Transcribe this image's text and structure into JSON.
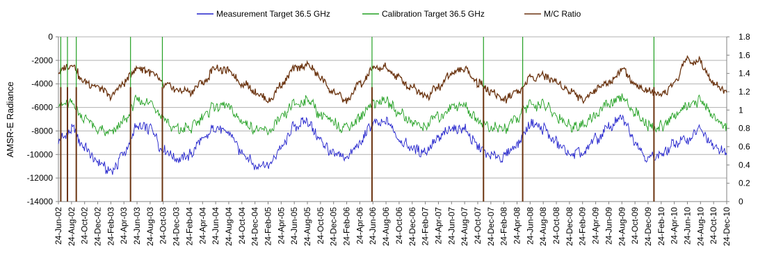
{
  "chart_data": {
    "type": "line",
    "title": "",
    "ylabel": "AMSR-E Radiance",
    "y2label": "",
    "xlabel": "",
    "ylim": [
      -14000,
      0
    ],
    "y2lim": [
      0,
      1.8
    ],
    "y_ticks": [
      0,
      -2000,
      -4000,
      -6000,
      -8000,
      -10000,
      -12000,
      -14000
    ],
    "y_tick_labels": [
      "0",
      "-2000",
      "-4000",
      "-6000",
      "-8000",
      "-10000",
      "-12000",
      "-14000"
    ],
    "y2_ticks": [
      0,
      0.2,
      0.4,
      0.6,
      0.8,
      1,
      1.2,
      1.4,
      1.6,
      1.8
    ],
    "y2_tick_labels": [
      "0",
      "0.2",
      "0.4",
      "0.6",
      "0.8",
      "1",
      "1.2",
      "1.4",
      "1.6",
      "1.8"
    ],
    "grid": true,
    "legend_position": "top",
    "x_tick_labels": [
      "24-Jun-02",
      "24-Aug-02",
      "24-Oct-02",
      "24-Dec-02",
      "24-Feb-03",
      "24-Apr-03",
      "24-Jun-03",
      "24-Aug-03",
      "24-Oct-03",
      "24-Dec-03",
      "24-Feb-04",
      "24-Apr-04",
      "24-Jun-04",
      "24-Aug-04",
      "24-Oct-04",
      "24-Dec-04",
      "24-Feb-05",
      "24-Apr-05",
      "24-Jun-05",
      "24-Aug-05",
      "24-Oct-05",
      "24-Dec-05",
      "24-Feb-06",
      "24-Apr-06",
      "24-Jun-06",
      "24-Aug-06",
      "24-Oct-06",
      "24-Dec-06",
      "24-Feb-07",
      "24-Apr-07",
      "24-Jun-07",
      "24-Aug-07",
      "24-Oct-07",
      "24-Dec-07",
      "24-Feb-08",
      "24-Apr-08",
      "24-Jun-08",
      "24-Aug-08",
      "24-Oct-08",
      "24-Dec-08",
      "24-Feb-09",
      "24-Apr-09",
      "24-Jun-09",
      "24-Aug-09",
      "24-Oct-09",
      "24-Dec-09",
      "24-Feb-10",
      "24-Apr-10",
      "24-Jun-10",
      "24-Aug-10",
      "24-Oct-10",
      "24-Dec-10"
    ],
    "x_start": "2002-06-24",
    "x_end": "2010-12-24",
    "series": [
      {
        "name": "Measurement Target 36.5 GHz",
        "axis": "left",
        "color": "#2222cc",
        "x": [
          "2002-06-24",
          "2002-08-24",
          "2002-10-24",
          "2002-12-24",
          "2003-02-24",
          "2003-04-24",
          "2003-06-24",
          "2003-08-24",
          "2003-10-24",
          "2003-12-24",
          "2004-02-24",
          "2004-04-24",
          "2004-06-24",
          "2004-08-24",
          "2004-10-24",
          "2004-12-24",
          "2005-02-24",
          "2005-04-24",
          "2005-06-24",
          "2005-08-24",
          "2005-10-24",
          "2005-12-24",
          "2006-02-24",
          "2006-04-24",
          "2006-06-24",
          "2006-08-24",
          "2006-10-24",
          "2006-12-24",
          "2007-02-24",
          "2007-04-24",
          "2007-06-24",
          "2007-08-24",
          "2007-10-24",
          "2007-12-24",
          "2008-02-24",
          "2008-04-24",
          "2008-06-24",
          "2008-08-24",
          "2008-10-24",
          "2008-12-24",
          "2009-02-24",
          "2009-04-24",
          "2009-06-24",
          "2009-08-24",
          "2009-10-24",
          "2009-12-24",
          "2010-02-24",
          "2010-04-24",
          "2010-06-24",
          "2010-08-24",
          "2010-10-24",
          "2010-12-24"
        ],
        "values": [
          -8800,
          -7800,
          -9300,
          -10800,
          -11500,
          -10000,
          -7600,
          -7800,
          -9600,
          -10500,
          -10000,
          -8800,
          -7700,
          -8000,
          -9800,
          -10900,
          -11000,
          -9400,
          -7600,
          -7300,
          -8800,
          -10000,
          -10300,
          -9000,
          -7400,
          -7200,
          -8600,
          -9500,
          -9800,
          -8800,
          -7700,
          -7900,
          -9300,
          -10200,
          -10200,
          -9000,
          -7500,
          -7800,
          -9000,
          -10000,
          -9900,
          -8700,
          -7700,
          -7000,
          -8800,
          -10200,
          -10000,
          -9200,
          -8800,
          -7900,
          -9300,
          -10000
        ]
      },
      {
        "name": "Calibration Target 36.5 GHz",
        "axis": "left",
        "color": "#22a022",
        "x": [
          "2002-06-24",
          "2002-08-24",
          "2002-10-24",
          "2002-12-24",
          "2003-02-24",
          "2003-04-24",
          "2003-06-24",
          "2003-08-24",
          "2003-10-24",
          "2003-12-24",
          "2004-02-24",
          "2004-04-24",
          "2004-06-24",
          "2004-08-24",
          "2004-10-24",
          "2004-12-24",
          "2005-02-24",
          "2005-04-24",
          "2005-06-24",
          "2005-08-24",
          "2005-10-24",
          "2005-12-24",
          "2006-02-24",
          "2006-04-24",
          "2006-06-24",
          "2006-08-24",
          "2006-10-24",
          "2006-12-24",
          "2007-02-24",
          "2007-04-24",
          "2007-06-24",
          "2007-08-24",
          "2007-10-24",
          "2007-12-24",
          "2008-02-24",
          "2008-04-24",
          "2008-06-24",
          "2008-08-24",
          "2008-10-24",
          "2008-12-24",
          "2009-02-24",
          "2009-04-24",
          "2009-06-24",
          "2009-08-24",
          "2009-10-24",
          "2009-12-24",
          "2010-02-24",
          "2010-04-24",
          "2010-06-24",
          "2010-08-24",
          "2010-10-24",
          "2010-12-24"
        ],
        "values": [
          -5800,
          -5600,
          -7000,
          -7800,
          -8200,
          -7200,
          -5500,
          -5600,
          -7000,
          -7900,
          -7800,
          -6800,
          -5800,
          -6000,
          -7200,
          -7900,
          -8000,
          -7000,
          -5800,
          -5400,
          -6500,
          -7400,
          -7700,
          -6800,
          -5600,
          -5400,
          -6400,
          -7300,
          -7600,
          -6800,
          -5800,
          -5900,
          -7000,
          -7700,
          -7800,
          -6900,
          -5700,
          -5800,
          -6800,
          -7500,
          -7600,
          -6600,
          -5800,
          -5200,
          -6500,
          -7600,
          -7600,
          -6800,
          -6000,
          -5400,
          -6800,
          -7600
        ]
      },
      {
        "name": "M/C Ratio",
        "axis": "right",
        "color": "#6b3410",
        "x": [
          "2002-06-24",
          "2002-08-24",
          "2002-10-24",
          "2002-12-24",
          "2003-02-24",
          "2003-04-24",
          "2003-06-24",
          "2003-08-24",
          "2003-10-24",
          "2003-12-24",
          "2004-02-24",
          "2004-04-24",
          "2004-06-24",
          "2004-08-24",
          "2004-10-24",
          "2004-12-24",
          "2005-02-24",
          "2005-04-24",
          "2005-06-24",
          "2005-08-24",
          "2005-10-24",
          "2005-12-24",
          "2006-02-24",
          "2006-04-24",
          "2006-06-24",
          "2006-08-24",
          "2006-10-24",
          "2006-12-24",
          "2007-02-24",
          "2007-04-24",
          "2007-06-24",
          "2007-08-24",
          "2007-10-24",
          "2007-12-24",
          "2008-02-24",
          "2008-04-24",
          "2008-06-24",
          "2008-08-24",
          "2008-10-24",
          "2008-12-24",
          "2009-02-24",
          "2009-04-24",
          "2009-06-24",
          "2009-08-24",
          "2009-10-24",
          "2009-12-24",
          "2010-02-24",
          "2010-04-24",
          "2010-06-24",
          "2010-08-24",
          "2010-10-24",
          "2010-12-24"
        ],
        "values": [
          1.4,
          1.5,
          1.3,
          1.25,
          1.15,
          1.3,
          1.45,
          1.42,
          1.28,
          1.22,
          1.2,
          1.3,
          1.45,
          1.42,
          1.3,
          1.2,
          1.1,
          1.3,
          1.45,
          1.48,
          1.35,
          1.2,
          1.1,
          1.28,
          1.45,
          1.46,
          1.35,
          1.25,
          1.15,
          1.25,
          1.4,
          1.44,
          1.3,
          1.2,
          1.12,
          1.2,
          1.35,
          1.38,
          1.3,
          1.22,
          1.12,
          1.22,
          1.3,
          1.44,
          1.28,
          1.2,
          1.15,
          1.3,
          1.55,
          1.52,
          1.3,
          1.2
        ]
      }
    ],
    "spikes": [
      {
        "series": "M/C Ratio",
        "x": "2002-07-05",
        "value": 0
      },
      {
        "series": "M/C Ratio",
        "x": "2002-08-05",
        "value": 0
      },
      {
        "series": "M/C Ratio",
        "x": "2002-09-15",
        "value": 0
      },
      {
        "series": "M/C Ratio",
        "x": "2003-05-25",
        "value": 0
      },
      {
        "series": "M/C Ratio",
        "x": "2003-10-20",
        "value": 0
      },
      {
        "series": "M/C Ratio",
        "x": "2006-06-20",
        "value": 0
      },
      {
        "series": "M/C Ratio",
        "x": "2007-11-20",
        "value": 0
      },
      {
        "series": "M/C Ratio",
        "x": "2008-05-20",
        "value": 0
      },
      {
        "series": "M/C Ratio",
        "x": "2010-01-20",
        "value": 0
      }
    ]
  }
}
